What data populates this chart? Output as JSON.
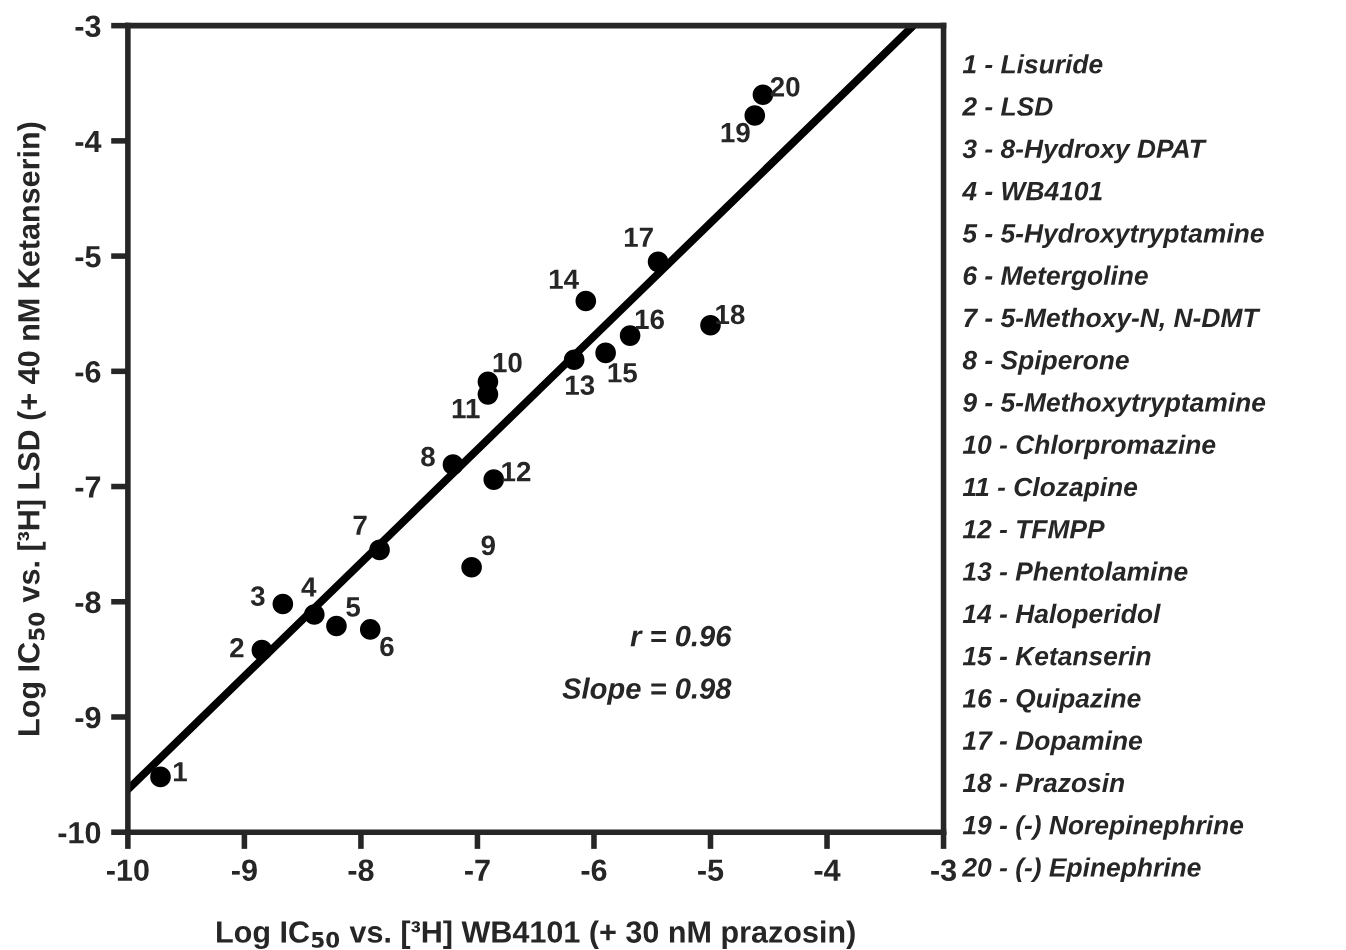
{
  "chart_data": {
    "type": "scatter",
    "xlabel": "Log IC$_{50}$ vs. [³H] WB4101 (+ 30 nM prazosin)",
    "ylabel": "Log IC$_{50}$ vs. [³H] LSD (+ 40 nM Ketanserin)",
    "xlim": [
      -10,
      -3
    ],
    "ylim": [
      -10,
      -3
    ],
    "xticks": [
      -10,
      -9,
      -8,
      -7,
      -6,
      -5,
      -4,
      -3
    ],
    "yticks": [
      -10,
      -9,
      -8,
      -7,
      -6,
      -5,
      -4,
      -3
    ],
    "grid": false,
    "legend": false,
    "series": [
      {
        "color": "#000000",
        "marker": "circle",
        "x": [
          -9.72,
          -8.85,
          -8.67,
          -8.4,
          -8.21,
          -7.92,
          -7.84,
          -7.21,
          -7.05,
          -6.91,
          -6.91,
          -6.86,
          -6.17,
          -6.07,
          -5.9,
          -5.69,
          -5.45,
          -5.0,
          -4.62,
          -4.55
        ],
        "values": [
          -9.52,
          -8.42,
          -8.02,
          -8.11,
          -8.21,
          -8.24,
          -7.55,
          -6.81,
          -7.7,
          -6.09,
          -6.2,
          -6.94,
          -5.9,
          -5.39,
          -5.84,
          -5.69,
          -5.05,
          -5.6,
          -3.78,
          -3.6
        ]
      },
      {
        "type": "line",
        "color": "#000000",
        "line_style": "solid",
        "x": [
          -10,
          -3.26
        ],
        "values": [
          -9.63,
          -3
        ]
      }
    ],
    "annotations": [
      {
        "text": "1",
        "x": -9.72,
        "y": -9.52
      },
      {
        "text": "2",
        "x": -8.85,
        "y": -8.42
      },
      {
        "text": "3",
        "x": -8.67,
        "y": -8.02
      },
      {
        "text": "4",
        "x": -8.4,
        "y": -8.11
      },
      {
        "text": "5",
        "x": -8.21,
        "y": -8.21
      },
      {
        "text": "6",
        "x": -7.92,
        "y": -8.24
      },
      {
        "text": "7",
        "x": -7.84,
        "y": -7.55
      },
      {
        "text": "8",
        "x": -7.21,
        "y": -6.81
      },
      {
        "text": "9",
        "x": -7.05,
        "y": -7.7
      },
      {
        "text": "10",
        "x": -6.91,
        "y": -6.09
      },
      {
        "text": "11",
        "x": -6.91,
        "y": -6.2
      },
      {
        "text": "12",
        "x": -6.86,
        "y": -6.94
      },
      {
        "text": "13",
        "x": -6.17,
        "y": -5.9
      },
      {
        "text": "14",
        "x": -6.07,
        "y": -5.39
      },
      {
        "text": "15",
        "x": -5.9,
        "y": -5.84
      },
      {
        "text": "16",
        "x": -5.69,
        "y": -5.69
      },
      {
        "text": "17",
        "x": -5.45,
        "y": -5.05
      },
      {
        "text": "18",
        "x": -5.0,
        "y": -5.6
      },
      {
        "text": "19",
        "x": -4.62,
        "y": -3.78
      },
      {
        "text": "20",
        "x": -4.55,
        "y": -3.6
      },
      "r = 0.96",
      "Slope = 0.98",
      "1 - Lisuride",
      "2 - LSD",
      "3 - 8-Hydroxy DPAT",
      "4 - WB4101",
      "5 - 5-Hydroxytryptamine",
      "6 - Metergoline",
      "7 - 5-Methoxy-N, N-DMT",
      "8 - Spiperone",
      "9 - 5-Methoxytryptamine",
      "10 - Chlorpromazine",
      "11 - Clozapine",
      "12 - TFMPP",
      "13 - Phentolamine",
      "14 - Haloperidol",
      "15 - Ketanserin",
      "16 - Quipazine",
      "17 - Dopamine",
      "18 - Prazosin",
      "19 - (-) Norepinephrine",
      "20 - (-) Epinephrine"
    ]
  }
}
